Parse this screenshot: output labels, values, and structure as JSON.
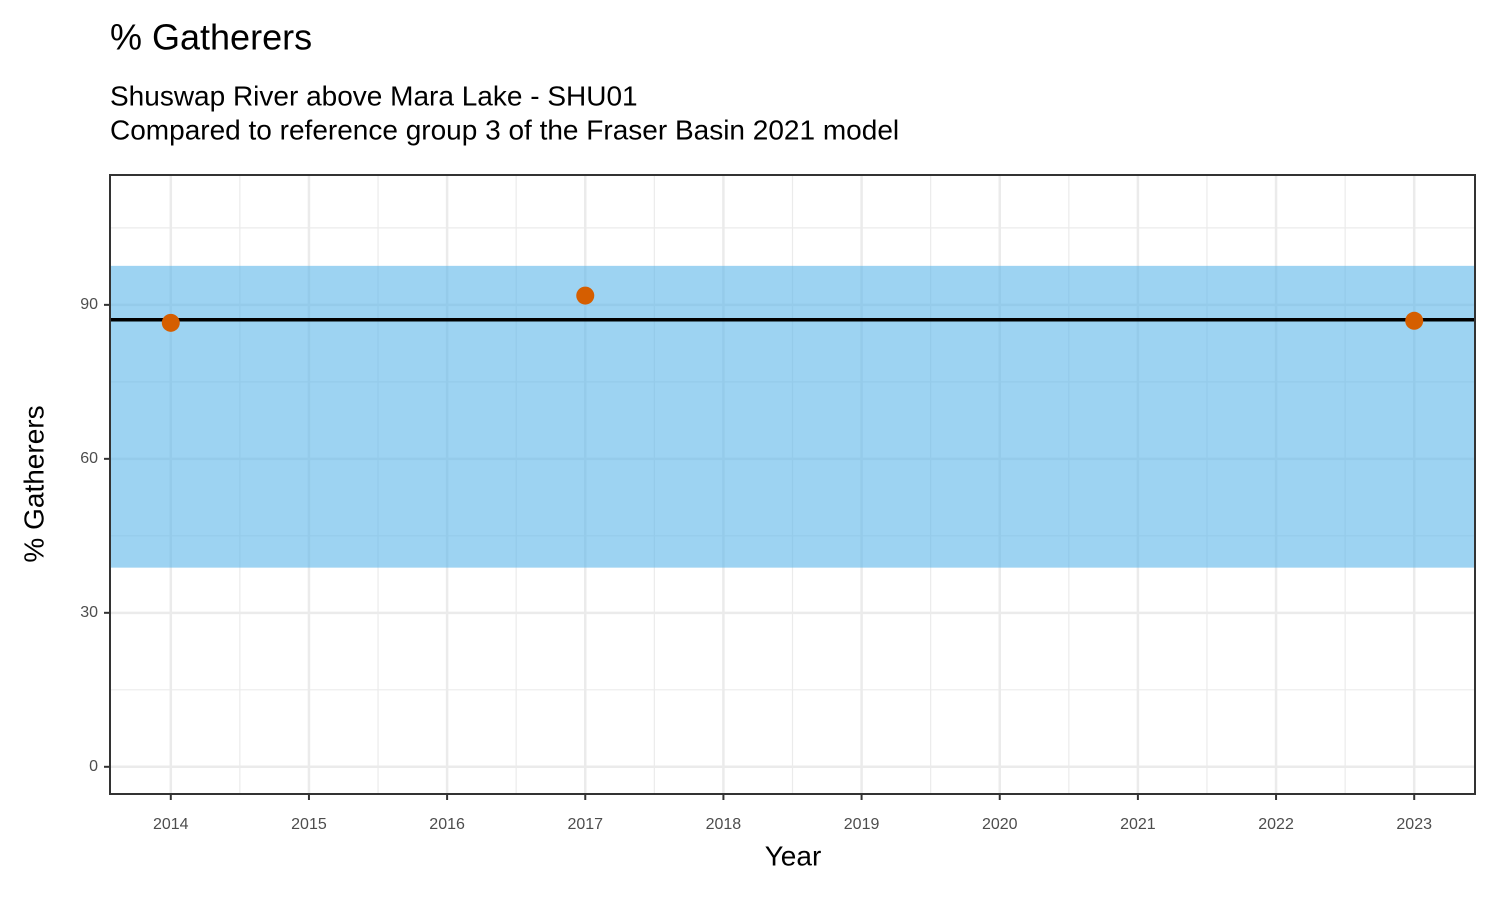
{
  "chart_data": {
    "type": "scatter",
    "title": "% Gatherers",
    "subtitle": [
      "Shuswap River above Mara Lake - SHU01",
      "Compared to reference group 3 of the Fraser Basin 2021 model"
    ],
    "x_label": "Year",
    "y_label": "% Gatherers",
    "x": [
      2014,
      2017,
      2023
    ],
    "values": [
      86.5,
      91.8,
      86.9
    ],
    "color": "#D55E00",
    "reference_band": [
      38.8,
      97.6
    ],
    "band_color": "#56B4E9",
    "reference_line": 87.1,
    "line_color": "#000000",
    "xlim": [
      2013.56,
      2023.44
    ],
    "xticks": [
      2014,
      2015,
      2016,
      2017,
      2018,
      2019,
      2020,
      2021,
      2022,
      2023
    ],
    "ylim": [
      -5.3,
      115.3
    ],
    "yticks": [
      0,
      30,
      60,
      90
    ],
    "grid": true
  }
}
